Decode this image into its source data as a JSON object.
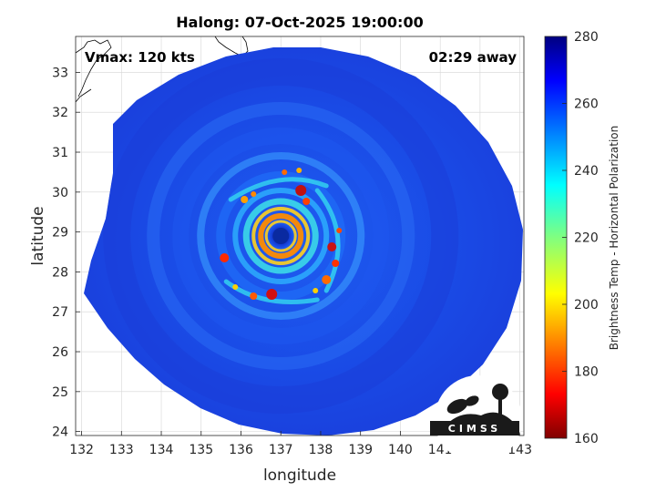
{
  "chart_data": {
    "type": "heatmap",
    "title": "Halong: 07-Oct-2025 19:00:00",
    "xlabel": "longitude",
    "ylabel": "latitude",
    "xlim": [
      131.85,
      143.1
    ],
    "ylim": [
      23.9,
      33.9
    ],
    "xticks": [
      132,
      133,
      134,
      135,
      136,
      137,
      138,
      139,
      140,
      141,
      142,
      143
    ],
    "yticks": [
      24,
      25,
      26,
      27,
      28,
      29,
      30,
      31,
      32,
      33
    ],
    "grid": true,
    "storm_center": {
      "lon": 137.0,
      "lat": 28.9
    },
    "annotations": {
      "vmax": "Vmax: 120 kts",
      "time_away": "02:29 away"
    },
    "colorbar": {
      "label": "Brightness Temp - Horizontal Polarization",
      "min": 160,
      "max": 280,
      "ticks": [
        160,
        180,
        200,
        220,
        240,
        260,
        280
      ],
      "colormap": "jet"
    },
    "logo": "CIMSS"
  }
}
